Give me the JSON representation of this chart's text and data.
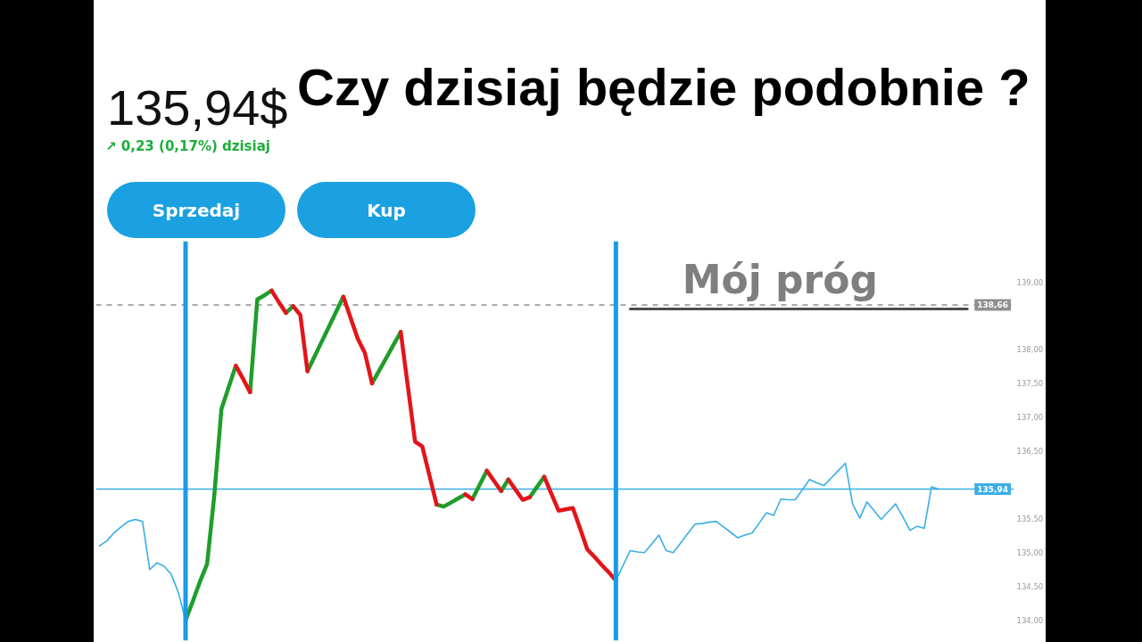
{
  "chart_data": {
    "type": "line",
    "title": "Czy dzisiaj będzie podobnie ?",
    "annotations": [
      "135,94$",
      "↗ 0,23 (0,17%) dzisiaj",
      "Sprzedaj",
      "Kup"
    ],
    "categories": [
      null,
      null,
      null,
      null,
      null,
      null,
      null,
      null,
      null,
      null,
      null,
      null,
      null,
      null,
      null,
      null,
      null,
      null,
      null,
      null,
      null,
      null,
      null,
      null,
      null,
      null,
      null,
      null,
      null,
      null,
      null,
      null,
      null,
      null,
      null,
      null,
      null,
      null,
      null,
      null,
      null,
      null,
      null,
      null,
      null,
      null,
      null,
      null,
      null,
      null,
      null,
      null,
      null,
      null,
      null,
      null,
      null,
      null,
      null,
      null,
      null,
      null,
      null,
      null,
      null,
      null,
      null,
      null,
      null,
      null,
      null,
      null,
      null,
      null,
      null,
      null,
      null,
      null,
      null,
      null,
      null,
      null,
      null,
      null,
      null,
      null,
      null,
      null,
      null,
      null,
      null,
      null,
      null,
      null,
      null,
      null,
      null,
      null,
      null,
      null,
      null,
      null,
      null,
      null,
      null,
      null,
      null,
      null,
      null,
      null,
      null,
      null,
      null,
      null,
      null,
      null,
      null,
      null,
      null,
      null,
      null,
      null,
      null,
      null,
      null,
      null,
      null,
      null
    ],
    "series": [
      {
        "color": "#3aaee6",
        "values": [
          135.1,
          135.17,
          135.29,
          135.38,
          135.46,
          135.49,
          135.46,
          134.75,
          134.85,
          134.8,
          134.68,
          134.41,
          134.0,
          null,
          null,
          null,
          null,
          null,
          null,
          null,
          null,
          null,
          null,
          null,
          null,
          null,
          null,
          null,
          null,
          null,
          null,
          null,
          null,
          null,
          null,
          null,
          null,
          null,
          null,
          null,
          null,
          null,
          null,
          null,
          null,
          null,
          null,
          null,
          null,
          null,
          null,
          null,
          null,
          null,
          null,
          null,
          null,
          null,
          null,
          null,
          null,
          null,
          null,
          null,
          null,
          null,
          null,
          null,
          null,
          null,
          null,
          null,
          134.59,
          134.81,
          135.03,
          135.01,
          135.0,
          135.13,
          135.26,
          135.03,
          135.0,
          135.14,
          135.28,
          135.42,
          135.43,
          135.45,
          135.46,
          135.38,
          135.3,
          135.22,
          135.26,
          135.29,
          135.44,
          135.59,
          135.55,
          135.79,
          135.78,
          135.78,
          135.93,
          136.08,
          136.03,
          135.99,
          136.1,
          136.21,
          136.32,
          135.72,
          135.51,
          135.75,
          135.62,
          135.49,
          135.61,
          135.72,
          135.53,
          135.33,
          135.39,
          135.36,
          135.97,
          135.94,
          null,
          null,
          null,
          null,
          null,
          null,
          null,
          null,
          null,
          null
        ]
      },
      {
        "color": "#1f9d2b",
        "values": [
          null,
          null,
          null,
          null,
          null,
          null,
          null,
          null,
          null,
          null,
          null,
          null,
          134.0,
          134.28,
          134.57,
          134.83,
          135.84,
          137.12,
          137.44,
          137.76,
          null,
          null,
          null,
          null,
          null,
          null,
          138.54,
          138.64,
          null,
          null,
          null,
          null,
          null,
          null,
          null,
          null,
          null,
          null,
          137.5,
          137.69,
          137.88,
          138.07,
          138.26,
          null,
          null,
          null,
          null,
          null,
          null,
          null,
          null,
          null,
          135.79,
          136.0,
          136.21,
          null,
          null,
          null,
          null,
          null,
          135.82,
          135.97,
          136.12,
          null,
          null,
          null,
          null,
          null,
          null,
          null,
          null,
          null,
          null,
          null,
          null,
          null,
          null,
          null,
          null,
          null,
          null,
          null,
          null,
          null,
          null,
          null,
          null,
          null,
          null,
          null,
          null,
          null,
          null,
          null,
          null,
          null,
          null,
          null,
          null,
          null,
          null,
          null,
          null,
          null,
          null,
          null,
          null,
          null,
          null,
          null,
          null,
          null,
          null,
          null,
          null,
          null,
          null,
          null,
          null,
          null,
          null,
          null,
          null,
          null,
          null,
          null,
          null,
          null
        ]
      },
      {
        "color": "#1f9d2b",
        "values": [
          null,
          null,
          null,
          null,
          null,
          null,
          null,
          null,
          null,
          null,
          null,
          null,
          null,
          null,
          null,
          null,
          null,
          null,
          null,
          null,
          null,
          137.37,
          138.74,
          138.8,
          138.87,
          null,
          null,
          null,
          null,
          137.68,
          137.9,
          138.12,
          138.34,
          138.56,
          138.78,
          null,
          null,
          null,
          null,
          null,
          null,
          null,
          null,
          null,
          null,
          null,
          null,
          135.71,
          135.68,
          135.74,
          135.8,
          135.86,
          null,
          null,
          null,
          null,
          135.91,
          136.08,
          null,
          null,
          null,
          null,
          null,
          null,
          null,
          null,
          null,
          null,
          null,
          null,
          null,
          null,
          null,
          null,
          null,
          null,
          null,
          null,
          null,
          null,
          null,
          null,
          null,
          null,
          null,
          null,
          null,
          null,
          null,
          null,
          null,
          null,
          null,
          null,
          null,
          null,
          null,
          null,
          null,
          null,
          null,
          null,
          null,
          null,
          null,
          null,
          null,
          null,
          null,
          null,
          null,
          null,
          null,
          null,
          null,
          null,
          null,
          null,
          null,
          null,
          null,
          null,
          null,
          null,
          null,
          null,
          null,
          null
        ]
      },
      {
        "color": "#e3151a",
        "values": [
          null,
          null,
          null,
          null,
          null,
          null,
          null,
          null,
          null,
          null,
          null,
          null,
          null,
          null,
          null,
          null,
          null,
          null,
          null,
          137.76,
          137.57,
          137.37,
          null,
          null,
          null,
          null,
          null,
          138.64,
          138.51,
          137.68,
          null,
          null,
          null,
          null,
          null,
          null,
          null,
          null,
          null,
          null,
          null,
          null,
          138.26,
          137.45,
          136.64,
          136.57,
          136.14,
          135.71,
          null,
          null,
          null,
          null,
          null,
          null,
          136.21,
          136.06,
          135.91,
          null,
          null,
          null,
          null,
          null,
          136.12,
          135.87,
          135.62,
          135.64,
          135.66,
          135.36,
          135.05,
          134.94,
          134.82,
          134.71,
          134.59,
          null,
          null,
          null,
          null,
          null,
          null,
          null,
          null,
          null,
          null,
          null,
          null,
          null,
          null,
          null,
          null,
          null,
          null,
          null,
          null,
          null,
          null,
          null,
          null,
          null,
          null,
          null,
          null,
          null,
          null,
          null,
          null,
          null,
          null,
          null,
          null,
          null,
          null,
          null,
          null,
          null,
          null,
          null,
          null,
          null,
          null,
          null,
          null,
          null,
          null,
          null,
          null,
          null,
          null,
          null
        ]
      },
      {
        "color": "#e3151a",
        "values": [
          null,
          null,
          null,
          null,
          null,
          null,
          null,
          null,
          null,
          null,
          null,
          null,
          null,
          null,
          null,
          null,
          null,
          null,
          null,
          null,
          null,
          null,
          null,
          null,
          138.87,
          138.7,
          138.54,
          null,
          null,
          null,
          null,
          null,
          null,
          null,
          138.78,
          138.47,
          138.16,
          137.95,
          137.5,
          null,
          null,
          null,
          null,
          null,
          null,
          null,
          null,
          null,
          null,
          null,
          null,
          135.86,
          135.79,
          null,
          null,
          null,
          null,
          136.08,
          135.93,
          135.78,
          135.82,
          null,
          null,
          null,
          null,
          null,
          null,
          null,
          null,
          null,
          null,
          null,
          null,
          null,
          null,
          null,
          null,
          null,
          null,
          null,
          null,
          null,
          null,
          null,
          null,
          null,
          null,
          null,
          null,
          null,
          null,
          null,
          null,
          null,
          null,
          null,
          null,
          null,
          null,
          null,
          null,
          null,
          null,
          null,
          null,
          null,
          null,
          null,
          null,
          null,
          null,
          null,
          null,
          null,
          null,
          null,
          null,
          null,
          null,
          null,
          null,
          null,
          null,
          null,
          null,
          null,
          null,
          null
        ]
      },
      {
        "name": "Mój próg",
        "color": "#4d4d4d",
        "values": [
          null,
          null,
          null,
          null,
          null,
          null,
          null,
          null,
          null,
          null,
          null,
          null,
          null,
          null,
          null,
          null,
          null,
          null,
          null,
          null,
          null,
          null,
          null,
          null,
          null,
          null,
          null,
          null,
          null,
          null,
          null,
          null,
          null,
          null,
          null,
          null,
          null,
          null,
          null,
          null,
          null,
          null,
          null,
          null,
          null,
          null,
          null,
          null,
          null,
          null,
          null,
          null,
          null,
          null,
          null,
          null,
          null,
          null,
          null,
          null,
          null,
          null,
          null,
          null,
          null,
          null,
          null,
          null,
          null,
          null,
          null,
          null,
          null,
          null,
          138.6,
          138.6,
          138.6,
          138.6,
          138.6,
          138.6,
          138.6,
          138.6,
          138.6,
          138.6,
          138.6,
          138.6,
          138.6,
          138.6,
          138.6,
          138.6,
          138.6,
          138.6,
          138.6,
          138.6,
          138.6,
          138.6,
          138.6,
          138.6,
          138.6,
          138.6,
          138.6,
          138.6,
          138.6,
          138.6,
          138.6,
          138.6,
          138.6,
          138.6,
          138.6,
          138.6,
          138.6,
          138.6,
          138.6,
          138.6,
          138.6,
          138.6,
          138.6,
          138.6,
          138.6,
          138.6,
          138.6,
          138.6,
          null,
          null,
          null,
          null,
          null,
          null
        ]
      }
    ],
    "ylim": [
      133.7,
      139.6
    ],
    "yticks": [
      {
        "value": 134,
        "label": "134,00"
      },
      {
        "value": 134.5,
        "label": "134,50"
      },
      {
        "value": 135,
        "label": "135,00"
      },
      {
        "value": 135.5,
        "label": "135,50"
      },
      {
        "value": 136.5,
        "label": "136,50"
      },
      {
        "value": 137,
        "label": "137,00"
      },
      {
        "value": 137.5,
        "label": "137,50"
      },
      {
        "value": 138,
        "label": "138,00"
      },
      {
        "value": 139,
        "label": "139,00"
      }
    ],
    "ref_lines": [
      {
        "axis": "y",
        "value": 138.66,
        "label": "138,66",
        "color": "#8f8f8f",
        "line_style": "dashed"
      },
      {
        "axis": "y",
        "value": 135.94,
        "label": "135,94",
        "color": "#3aaee6"
      }
    ],
    "tick_labels": "y"
  }
}
